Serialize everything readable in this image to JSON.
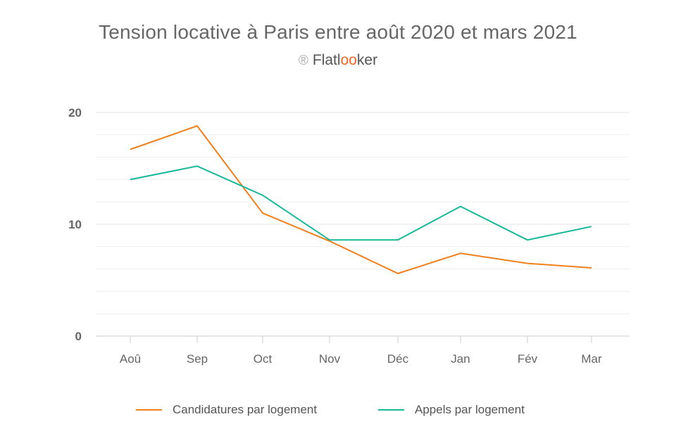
{
  "header": {
    "title": "Tension locative à Paris entre août 2020 et mars 2021",
    "brand_mark": "®",
    "brand_pre": "Flatl",
    "brand_oo": "oo",
    "brand_post": "ker"
  },
  "chart_data": {
    "type": "line",
    "title": "Tension locative à Paris entre août 2020 et mars 2021",
    "subtitle": "® Flatlooker",
    "xlabel": "",
    "ylabel": "",
    "categories": [
      "Aoû",
      "Sep",
      "Oct",
      "Nov",
      "Déc",
      "Jan",
      "Fév",
      "Mar"
    ],
    "ylim": [
      0,
      20
    ],
    "yticks": [
      0,
      10,
      20
    ],
    "grid": true,
    "legend_position": "bottom",
    "series": [
      {
        "name": "Candidatures par logement",
        "color": "#f07f1d",
        "values": [
          16.7,
          18.8,
          11.0,
          8.5,
          5.6,
          7.4,
          6.5,
          6.1
        ]
      },
      {
        "name": "Appels par logement",
        "color": "#16b89a",
        "values": [
          14.0,
          15.2,
          12.6,
          8.6,
          8.6,
          11.6,
          8.6,
          9.8
        ]
      }
    ]
  }
}
